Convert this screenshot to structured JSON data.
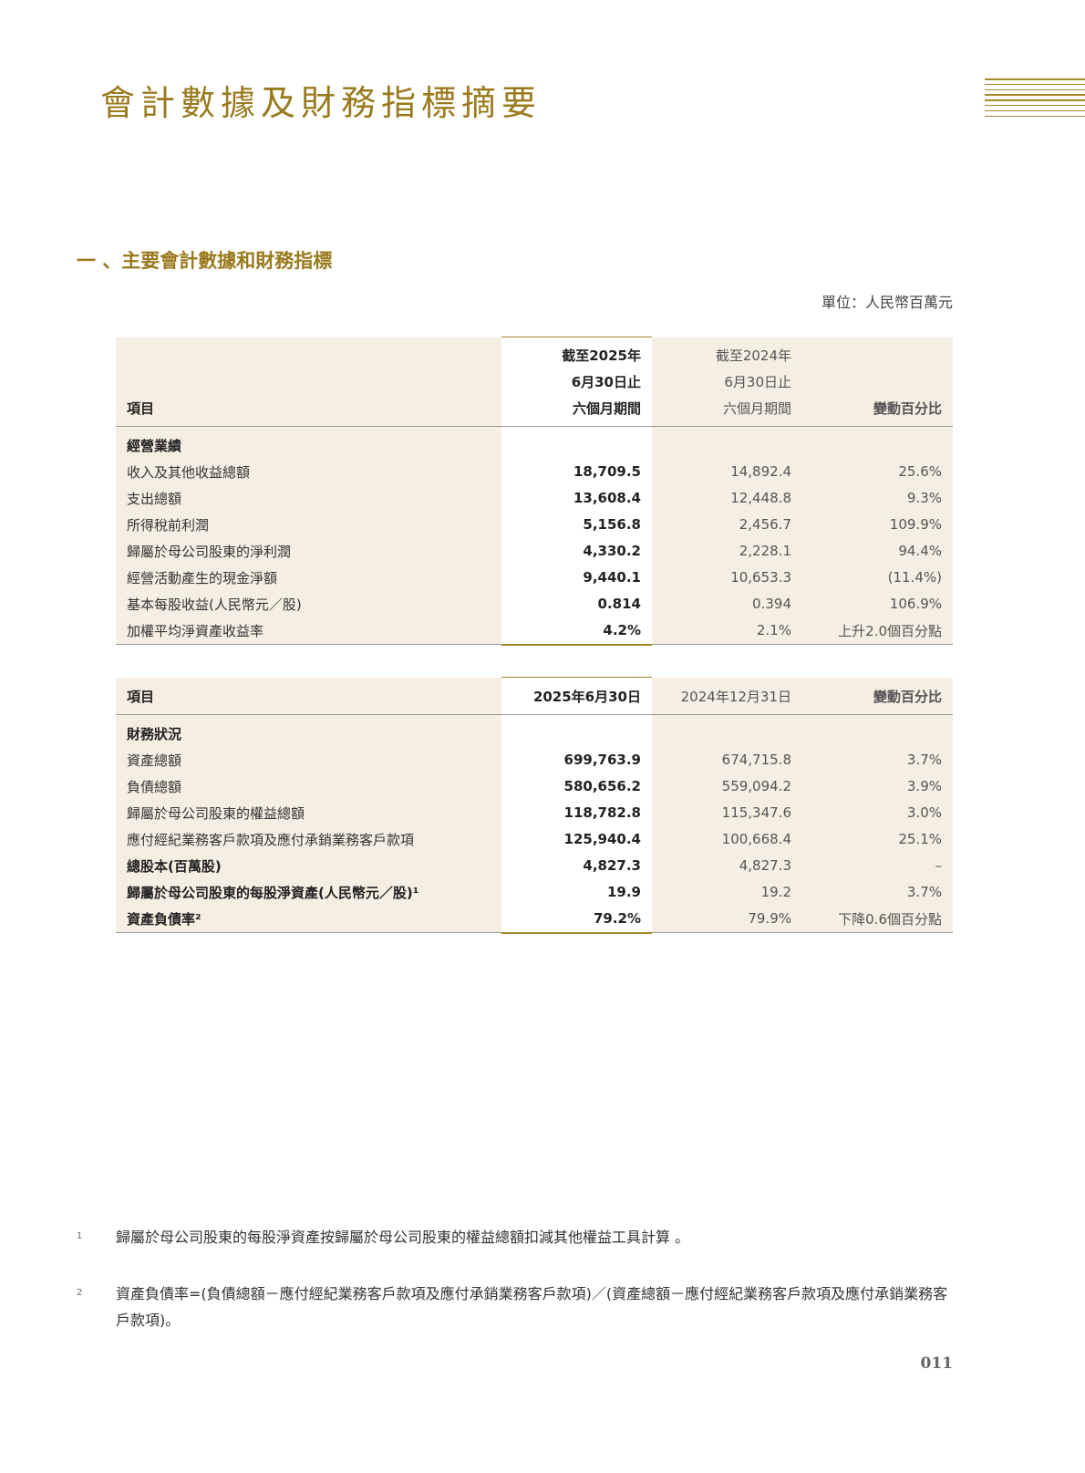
{
  "header": {
    "title": "會計數據及財務指標摘要"
  },
  "section": {
    "title": "一 、主要會計數據和財務指標",
    "unit": "單位：人民幣百萬元"
  },
  "table1": {
    "headers": {
      "item": "項目",
      "col2": [
        "截至2025年",
        "6月30日止",
        "六個月期間"
      ],
      "col3": [
        "截至2024年",
        "6月30日止",
        "六個月期間"
      ],
      "col4": "變動百分比"
    },
    "group": "經營業績",
    "rows": [
      {
        "label": "收入及其他收益總額",
        "v2025": "18,709.5",
        "v2024": "14,892.4",
        "change": "25.6%"
      },
      {
        "label": "支出總額",
        "v2025": "13,608.4",
        "v2024": "12,448.8",
        "change": "9.3%"
      },
      {
        "label": "所得稅前利潤",
        "v2025": "5,156.8",
        "v2024": "2,456.7",
        "change": "109.9%"
      },
      {
        "label": "歸屬於母公司股東的淨利潤",
        "v2025": "4,330.2",
        "v2024": "2,228.1",
        "change": "94.4%"
      },
      {
        "label": "經營活動產生的現金淨額",
        "v2025": "9,440.1",
        "v2024": "10,653.3",
        "change": "(11.4%)"
      },
      {
        "label": "基本每股收益(人民幣元／股)",
        "v2025": "0.814",
        "v2024": "0.394",
        "change": "106.9%"
      },
      {
        "label": "加權平均淨資產收益率",
        "v2025": "4.2%",
        "v2024": "2.1%",
        "change": "上升2.0個百分點"
      }
    ]
  },
  "table2": {
    "headers": {
      "item": "項目",
      "col2": "2025年6月30日",
      "col3": "2024年12月31日",
      "col4": "變動百分比"
    },
    "group": "財務狀況",
    "rows": [
      {
        "label": "資產總額",
        "v2025": "699,763.9",
        "v2024": "674,715.8",
        "change": "3.7%"
      },
      {
        "label": "負債總額",
        "v2025": "580,656.2",
        "v2024": "559,094.2",
        "change": "3.9%"
      },
      {
        "label": "歸屬於母公司股東的權益總額",
        "v2025": "118,782.8",
        "v2024": "115,347.6",
        "change": "3.0%"
      },
      {
        "label": "應付經紀業務客戶款項及應付承銷業務客戶款項",
        "v2025": "125,940.4",
        "v2024": "100,668.4",
        "change": "25.1%"
      },
      {
        "label": "總股本(百萬股)",
        "v2025": "4,827.3",
        "v2024": "4,827.3",
        "change": "–"
      },
      {
        "label": "歸屬於母公司股東的每股淨資產(人民幣元／股)¹",
        "v2025": "19.9",
        "v2024": "19.2",
        "change": "3.7%"
      },
      {
        "label": "資產負債率²",
        "v2025": "79.2%",
        "v2024": "79.9%",
        "change": "下降0.6個百分點"
      }
    ]
  },
  "footnotes": [
    {
      "num": "1",
      "text": "歸屬於母公司股東的每股淨資產按歸屬於母公司股東的權益總額扣減其他權益工具計算 。"
    },
    {
      "num": "2",
      "text": "資產負債率=(負債總額－應付經紀業務客戶款項及應付承銷業務客戶款項)／(資產總額－應付經紀業務客戶款項及應付承銷業務客戶款項)。"
    }
  ],
  "page_number": "011"
}
